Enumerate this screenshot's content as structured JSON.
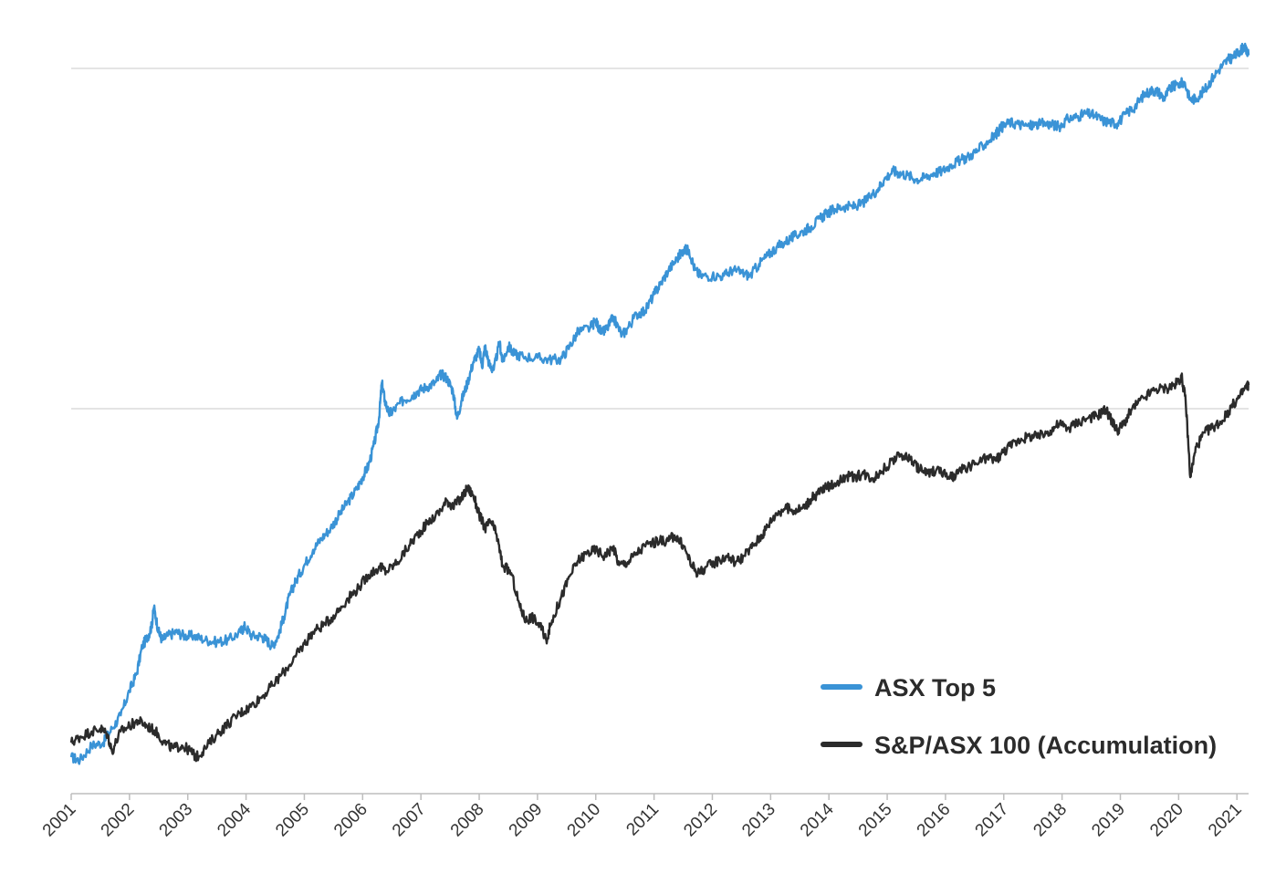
{
  "chart_data": {
    "type": "line",
    "title": "",
    "xlabel": "",
    "ylabel": "",
    "y_scale": "log",
    "y_tick_labels_shown": false,
    "grid": "horizontal",
    "legend_position": "bottom-right",
    "x_ticks": [
      "2001",
      "2002",
      "2003",
      "2004",
      "2005",
      "2006",
      "2007",
      "2008",
      "2009",
      "2010",
      "2011",
      "2012",
      "2013",
      "2014",
      "2015",
      "2016",
      "2017",
      "2018",
      "2019",
      "2020",
      "2021"
    ],
    "series": [
      {
        "name": "ASX Top 5",
        "color": "#3a93d6",
        "points": [
          [
            "2001.00",
            100
          ],
          [
            "2001.15",
            99
          ],
          [
            "2001.35",
            104
          ],
          [
            "2001.55",
            105
          ],
          [
            "2001.70",
            110
          ],
          [
            "2001.85",
            115
          ],
          [
            "2002.00",
            125
          ],
          [
            "2002.12",
            132
          ],
          [
            "2002.22",
            145
          ],
          [
            "2002.32",
            150
          ],
          [
            "2002.38",
            155
          ],
          [
            "2002.42",
            165
          ],
          [
            "2002.50",
            152
          ],
          [
            "2002.56",
            148
          ],
          [
            "2002.65",
            150
          ],
          [
            "2002.80",
            152
          ],
          [
            "2002.95",
            150
          ],
          [
            "2003.10",
            150
          ],
          [
            "2003.30",
            148
          ],
          [
            "2003.50",
            147
          ],
          [
            "2003.70",
            148
          ],
          [
            "2003.90",
            152
          ],
          [
            "2003.98",
            155
          ],
          [
            "2004.10",
            150
          ],
          [
            "2004.25",
            150
          ],
          [
            "2004.35",
            148
          ],
          [
            "2004.45",
            145
          ],
          [
            "2004.55",
            150
          ],
          [
            "2004.65",
            160
          ],
          [
            "2004.75",
            172
          ],
          [
            "2004.85",
            180
          ],
          [
            "2005.00",
            190
          ],
          [
            "2005.15",
            200
          ],
          [
            "2005.30",
            208
          ],
          [
            "2005.45",
            215
          ],
          [
            "2005.60",
            225
          ],
          [
            "2005.75",
            235
          ],
          [
            "2005.90",
            245
          ],
          [
            "2006.00",
            255
          ],
          [
            "2006.10",
            265
          ],
          [
            "2006.20",
            285
          ],
          [
            "2006.28",
            310
          ],
          [
            "2006.33",
            350
          ],
          [
            "2006.38",
            330
          ],
          [
            "2006.45",
            315
          ],
          [
            "2006.55",
            320
          ],
          [
            "2006.70",
            330
          ],
          [
            "2006.85",
            335
          ],
          [
            "2006.95",
            340
          ],
          [
            "2007.10",
            345
          ],
          [
            "2007.25",
            350
          ],
          [
            "2007.35",
            360
          ],
          [
            "2007.45",
            355
          ],
          [
            "2007.55",
            340
          ],
          [
            "2007.62",
            310
          ],
          [
            "2007.70",
            330
          ],
          [
            "2007.80",
            350
          ],
          [
            "2007.90",
            375
          ],
          [
            "2008.00",
            390
          ],
          [
            "2008.05",
            370
          ],
          [
            "2008.10",
            395
          ],
          [
            "2008.18",
            370
          ],
          [
            "2008.25",
            365
          ],
          [
            "2008.35",
            400
          ],
          [
            "2008.40",
            375
          ],
          [
            "2008.50",
            395
          ],
          [
            "2008.60",
            385
          ],
          [
            "2008.75",
            382
          ],
          [
            "2009.00",
            380
          ],
          [
            "2009.20",
            378
          ],
          [
            "2009.40",
            378
          ],
          [
            "2009.55",
            395
          ],
          [
            "2009.70",
            415
          ],
          [
            "2009.90",
            420
          ],
          [
            "2010.00",
            430
          ],
          [
            "2010.10",
            412
          ],
          [
            "2010.20",
            420
          ],
          [
            "2010.30",
            435
          ],
          [
            "2010.45",
            410
          ],
          [
            "2010.55",
            420
          ],
          [
            "2010.70",
            440
          ],
          [
            "2010.85",
            445
          ],
          [
            "2011.00",
            470
          ],
          [
            "2011.10",
            485
          ],
          [
            "2011.25",
            510
          ],
          [
            "2011.40",
            530
          ],
          [
            "2011.50",
            545
          ],
          [
            "2011.60",
            545
          ],
          [
            "2011.70",
            510
          ],
          [
            "2011.80",
            500
          ],
          [
            "2012.00",
            500
          ],
          [
            "2012.20",
            500
          ],
          [
            "2012.35",
            510
          ],
          [
            "2012.50",
            505
          ],
          [
            "2012.65",
            500
          ],
          [
            "2012.80",
            520
          ],
          [
            "2012.95",
            535
          ],
          [
            "2013.10",
            550
          ],
          [
            "2013.25",
            560
          ],
          [
            "2013.40",
            570
          ],
          [
            "2013.55",
            580
          ],
          [
            "2013.70",
            590
          ],
          [
            "2013.85",
            605
          ],
          [
            "2013.95",
            615
          ],
          [
            "2014.10",
            625
          ],
          [
            "2014.25",
            630
          ],
          [
            "2014.40",
            630
          ],
          [
            "2014.55",
            635
          ],
          [
            "2014.70",
            650
          ],
          [
            "2014.85",
            670
          ],
          [
            "2014.95",
            690
          ],
          [
            "2015.10",
            710
          ],
          [
            "2015.20",
            705
          ],
          [
            "2015.35",
            700
          ],
          [
            "2015.50",
            690
          ],
          [
            "2015.65",
            695
          ],
          [
            "2015.80",
            705
          ],
          [
            "2015.95",
            710
          ],
          [
            "2016.10",
            725
          ],
          [
            "2016.25",
            735
          ],
          [
            "2016.40",
            745
          ],
          [
            "2016.55",
            760
          ],
          [
            "2016.70",
            780
          ],
          [
            "2016.85",
            800
          ],
          [
            "2016.95",
            820
          ],
          [
            "2017.10",
            835
          ],
          [
            "2017.25",
            830
          ],
          [
            "2017.40",
            825
          ],
          [
            "2017.55",
            828
          ],
          [
            "2017.70",
            832
          ],
          [
            "2017.85",
            828
          ],
          [
            "2017.95",
            823
          ],
          [
            "2018.10",
            845
          ],
          [
            "2018.25",
            850
          ],
          [
            "2018.40",
            860
          ],
          [
            "2018.55",
            855
          ],
          [
            "2018.70",
            840
          ],
          [
            "2018.85",
            835
          ],
          [
            "2018.95",
            832
          ],
          [
            "2019.10",
            860
          ],
          [
            "2019.25",
            880
          ],
          [
            "2019.40",
            915
          ],
          [
            "2019.55",
            930
          ],
          [
            "2019.65",
            925
          ],
          [
            "2019.75",
            905
          ],
          [
            "2019.85",
            935
          ],
          [
            "2019.95",
            945
          ],
          [
            "2020.10",
            955
          ],
          [
            "2020.20",
            900
          ],
          [
            "2020.30",
            905
          ],
          [
            "2020.45",
            930
          ],
          [
            "2020.60",
            975
          ],
          [
            "2020.75",
            1010
          ],
          [
            "2020.85",
            1030
          ],
          [
            "2020.95",
            1040
          ],
          [
            "2021.05",
            1060
          ],
          [
            "2021.12",
            1075
          ],
          [
            "2021.20",
            1045
          ]
        ]
      },
      {
        "name": "S&P/ASX 100 (Accumulation)",
        "color": "#2b2b2b",
        "points": [
          [
            "2001.00",
            105
          ],
          [
            "2001.15",
            107
          ],
          [
            "2001.35",
            109
          ],
          [
            "2001.50",
            110
          ],
          [
            "2001.62",
            108
          ],
          [
            "2001.70",
            102
          ],
          [
            "2001.85",
            109
          ],
          [
            "2002.00",
            111
          ],
          [
            "2002.15",
            113
          ],
          [
            "2002.30",
            111
          ],
          [
            "2002.45",
            109
          ],
          [
            "2002.60",
            105
          ],
          [
            "2002.75",
            103
          ],
          [
            "2002.90",
            104
          ],
          [
            "2003.05",
            102
          ],
          [
            "2003.15",
            100
          ],
          [
            "2003.30",
            103
          ],
          [
            "2003.50",
            108
          ],
          [
            "2003.70",
            112
          ],
          [
            "2003.90",
            116
          ],
          [
            "2004.05",
            118
          ],
          [
            "2004.25",
            122
          ],
          [
            "2004.45",
            127
          ],
          [
            "2004.65",
            133
          ],
          [
            "2004.85",
            140
          ],
          [
            "2005.00",
            146
          ],
          [
            "2005.15",
            152
          ],
          [
            "2005.35",
            156
          ],
          [
            "2005.55",
            162
          ],
          [
            "2005.75",
            170
          ],
          [
            "2005.95",
            177
          ],
          [
            "2006.10",
            184
          ],
          [
            "2006.30",
            189
          ],
          [
            "2006.40",
            186
          ],
          [
            "2006.60",
            192
          ],
          [
            "2006.80",
            203
          ],
          [
            "2006.95",
            211
          ],
          [
            "2007.10",
            218
          ],
          [
            "2007.30",
            226
          ],
          [
            "2007.45",
            236
          ],
          [
            "2007.55",
            231
          ],
          [
            "2007.70",
            238
          ],
          [
            "2007.80",
            246
          ],
          [
            "2007.90",
            240
          ],
          [
            "2008.00",
            225
          ],
          [
            "2008.10",
            215
          ],
          [
            "2008.20",
            220
          ],
          [
            "2008.30",
            210
          ],
          [
            "2008.40",
            190
          ],
          [
            "2008.55",
            185
          ],
          [
            "2008.70",
            165
          ],
          [
            "2008.80",
            158
          ],
          [
            "2008.90",
            160
          ],
          [
            "2009.05",
            155
          ],
          [
            "2009.15",
            148
          ],
          [
            "2009.25",
            158
          ],
          [
            "2009.40",
            170
          ],
          [
            "2009.55",
            183
          ],
          [
            "2009.70",
            193
          ],
          [
            "2009.85",
            198
          ],
          [
            "2010.00",
            200
          ],
          [
            "2010.15",
            196
          ],
          [
            "2010.30",
            202
          ],
          [
            "2010.40",
            190
          ],
          [
            "2010.55",
            192
          ],
          [
            "2010.70",
            198
          ],
          [
            "2010.90",
            204
          ],
          [
            "2011.10",
            206
          ],
          [
            "2011.25",
            206
          ],
          [
            "2011.35",
            210
          ],
          [
            "2011.50",
            203
          ],
          [
            "2011.65",
            190
          ],
          [
            "2011.75",
            185
          ],
          [
            "2011.90",
            189
          ],
          [
            "2012.05",
            192
          ],
          [
            "2012.25",
            196
          ],
          [
            "2012.40",
            192
          ],
          [
            "2012.55",
            196
          ],
          [
            "2012.70",
            203
          ],
          [
            "2012.85",
            210
          ],
          [
            "2012.95",
            217
          ],
          [
            "2013.10",
            226
          ],
          [
            "2013.25",
            230
          ],
          [
            "2013.40",
            228
          ],
          [
            "2013.55",
            230
          ],
          [
            "2013.70",
            237
          ],
          [
            "2013.85",
            243
          ],
          [
            "2013.95",
            246
          ],
          [
            "2014.10",
            250
          ],
          [
            "2014.30",
            256
          ],
          [
            "2014.45",
            255
          ],
          [
            "2014.60",
            258
          ],
          [
            "2014.75",
            254
          ],
          [
            "2014.90",
            260
          ],
          [
            "2015.10",
            270
          ],
          [
            "2015.25",
            275
          ],
          [
            "2015.40",
            271
          ],
          [
            "2015.55",
            262
          ],
          [
            "2015.70",
            258
          ],
          [
            "2015.85",
            262
          ],
          [
            "2016.05",
            255
          ],
          [
            "2016.15",
            255
          ],
          [
            "2016.30",
            262
          ],
          [
            "2016.50",
            266
          ],
          [
            "2016.70",
            272
          ],
          [
            "2016.85",
            270
          ],
          [
            "2016.95",
            275
          ],
          [
            "2017.10",
            283
          ],
          [
            "2017.30",
            290
          ],
          [
            "2017.45",
            292
          ],
          [
            "2017.60",
            292
          ],
          [
            "2017.80",
            298
          ],
          [
            "2017.95",
            305
          ],
          [
            "2018.10",
            300
          ],
          [
            "2018.25",
            306
          ],
          [
            "2018.45",
            311
          ],
          [
            "2018.60",
            313
          ],
          [
            "2018.75",
            320
          ],
          [
            "2018.85",
            308
          ],
          [
            "2018.95",
            298
          ],
          [
            "2019.05",
            304
          ],
          [
            "2019.20",
            320
          ],
          [
            "2019.40",
            332
          ],
          [
            "2019.60",
            342
          ],
          [
            "2019.80",
            343
          ],
          [
            "2019.95",
            348
          ],
          [
            "2020.05",
            357
          ],
          [
            "2020.12",
            330
          ],
          [
            "2020.20",
            255
          ],
          [
            "2020.30",
            282
          ],
          [
            "2020.45",
            296
          ],
          [
            "2020.60",
            302
          ],
          [
            "2020.75",
            308
          ],
          [
            "2020.90",
            322
          ],
          [
            "2021.05",
            334
          ],
          [
            "2021.15",
            344
          ],
          [
            "2021.20",
            347
          ]
        ]
      }
    ],
    "legend": [
      {
        "label": "ASX Top 5",
        "color": "#3a93d6"
      },
      {
        "label": "S&P/ASX 100 (Accumulation)",
        "color": "#2b2b2b"
      }
    ]
  }
}
